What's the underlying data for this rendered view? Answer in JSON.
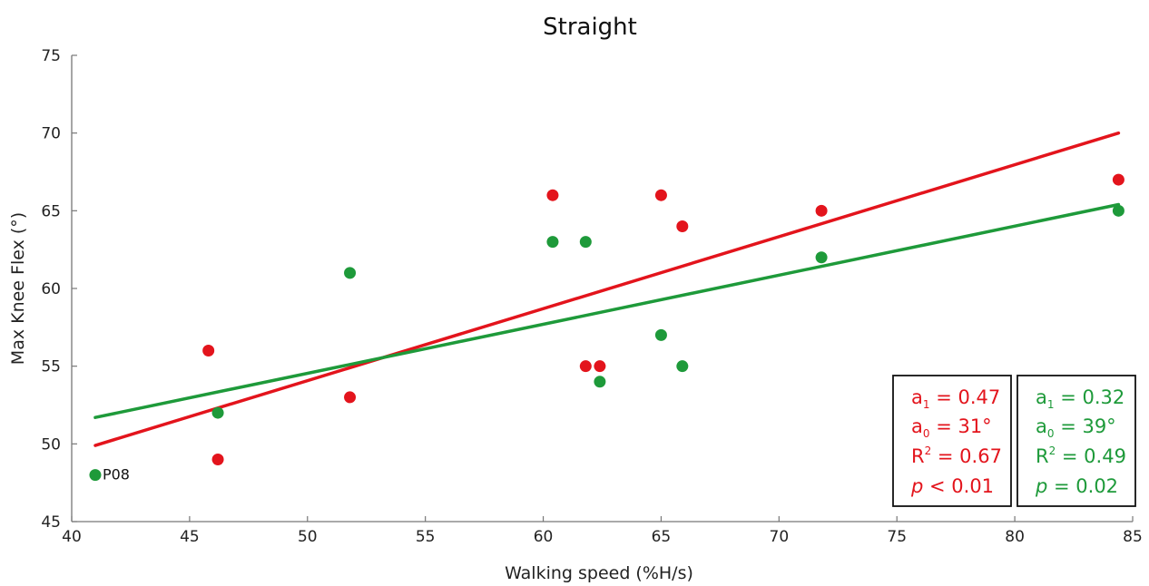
{
  "chart_data": {
    "type": "scatter",
    "title": "Straight",
    "xlabel": "Walking speed (%H/s)",
    "ylabel": "Max Knee Flex (°)",
    "xlim": [
      40,
      85
    ],
    "ylim": [
      45,
      75
    ],
    "xticks": [
      40,
      45,
      50,
      55,
      60,
      65,
      70,
      75,
      80,
      85
    ],
    "yticks": [
      45,
      50,
      55,
      60,
      65,
      70,
      75
    ],
    "grid": false,
    "series": [
      {
        "color": "#e3141c",
        "points": [
          {
            "x": 45.8,
            "y": 56
          },
          {
            "x": 46.2,
            "y": 49
          },
          {
            "x": 51.8,
            "y": 53
          },
          {
            "x": 60.4,
            "y": 66
          },
          {
            "x": 61.8,
            "y": 55
          },
          {
            "x": 62.4,
            "y": 55
          },
          {
            "x": 65.0,
            "y": 66
          },
          {
            "x": 65.9,
            "y": 64
          },
          {
            "x": 71.8,
            "y": 65
          },
          {
            "x": 84.4,
            "y": 67
          }
        ],
        "fit": {
          "x": [
            41,
            84.4
          ],
          "y": [
            49.9,
            70.0
          ]
        },
        "stats": {
          "a1_label": "a",
          "a1_sub": "1",
          "a1_value": " = 0.47",
          "a0_label": "a",
          "a0_sub": "0",
          "a0_value": " = 31°",
          "r2_label": "R",
          "r2_sup": "2",
          "r2_value": " = 0.67",
          "p_label": "p",
          "p_value": " < 0.01"
        }
      },
      {
        "color": "#1e9a3a",
        "points": [
          {
            "x": 41.0,
            "y": 48
          },
          {
            "x": 46.2,
            "y": 52
          },
          {
            "x": 51.8,
            "y": 61
          },
          {
            "x": 60.4,
            "y": 63
          },
          {
            "x": 61.8,
            "y": 63
          },
          {
            "x": 62.4,
            "y": 54
          },
          {
            "x": 65.0,
            "y": 57
          },
          {
            "x": 65.9,
            "y": 55
          },
          {
            "x": 71.8,
            "y": 62
          },
          {
            "x": 84.4,
            "y": 65
          }
        ],
        "fit": {
          "x": [
            41,
            84.4
          ],
          "y": [
            51.7,
            65.4
          ]
        },
        "stats": {
          "a1_label": "a",
          "a1_sub": "1",
          "a1_value": " = 0.32",
          "a0_label": "a",
          "a0_sub": "0",
          "a0_value": " = 39°",
          "r2_label": "R",
          "r2_sup": "2",
          "r2_value": " = 0.49",
          "p_label": "p",
          "p_value": " = 0.02"
        }
      }
    ],
    "annotations": [
      {
        "text": "P08",
        "x": 41.0,
        "y": 48
      }
    ]
  }
}
